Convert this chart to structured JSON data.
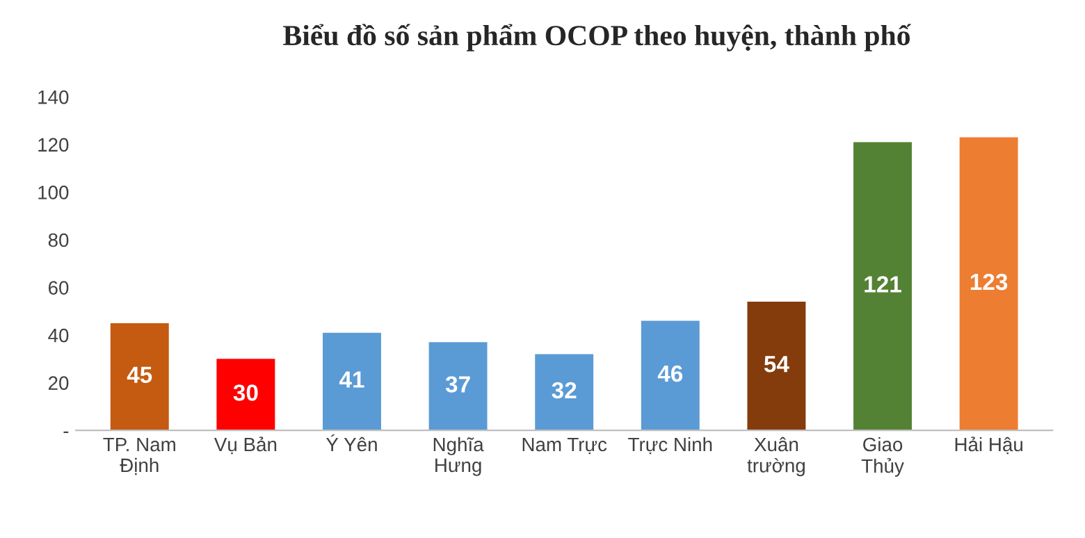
{
  "chart_data": {
    "type": "bar",
    "title": "Biểu đồ số sản phẩm OCOP theo huyện, thành phố",
    "categories": [
      "TP. Nam\nĐịnh",
      "Vụ Bản",
      "Ý Yên",
      "Nghĩa\nHưng",
      "Nam Trực",
      "Trực Ninh",
      "Xuân\ntrường",
      "Giao\nThủy",
      "Hải Hậu"
    ],
    "values": [
      45,
      30,
      41,
      37,
      32,
      46,
      54,
      121,
      123
    ],
    "colors": [
      "#c55a11",
      "#ff0000",
      "#5b9bd5",
      "#5b9bd5",
      "#5b9bd5",
      "#5b9bd5",
      "#843c0c",
      "#548235",
      "#ed7d31"
    ],
    "ylim": [
      0,
      140
    ],
    "yticks": [
      {
        "value": 0,
        "label": "-"
      },
      20,
      40,
      60,
      80,
      100,
      120,
      140
    ],
    "data_labels": true,
    "grid": false
  }
}
